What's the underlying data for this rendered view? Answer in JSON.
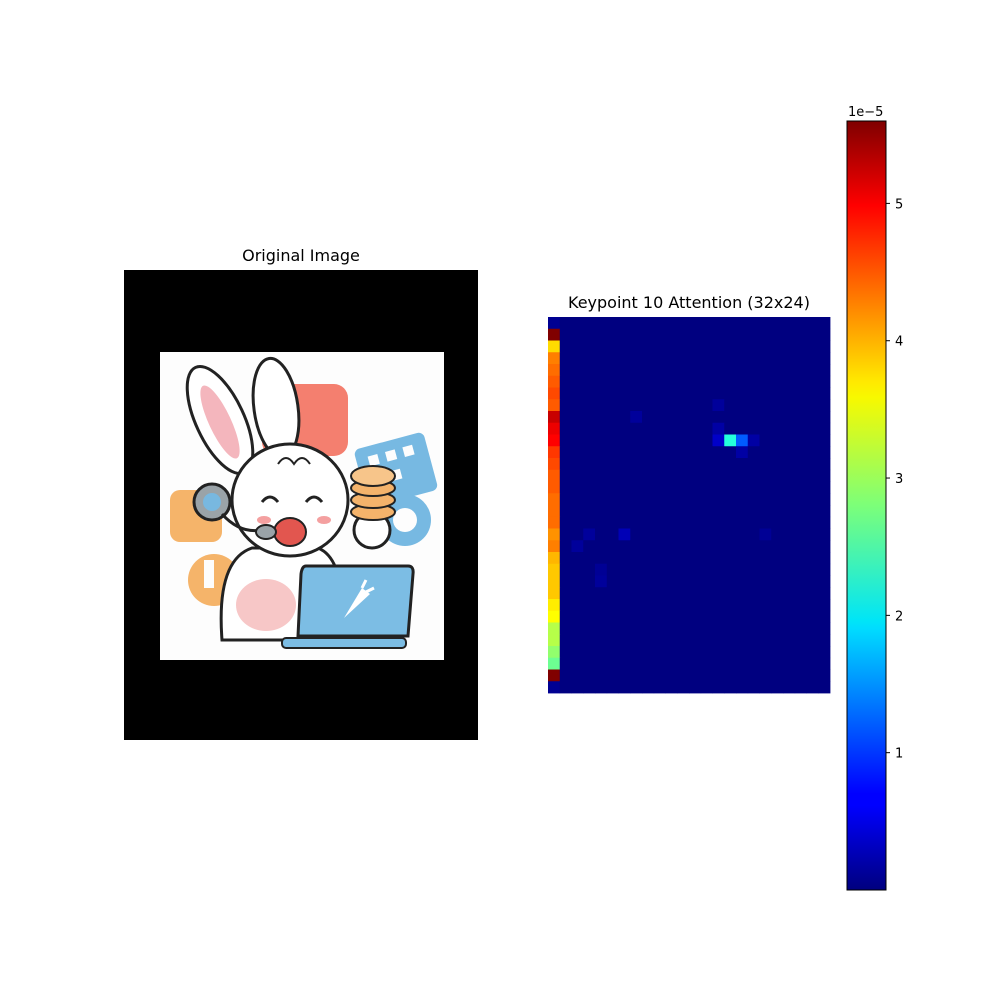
{
  "panels": {
    "left": {
      "title": "Original Image"
    },
    "right": {
      "title": "Keypoint 10 Attention (32x24)"
    }
  },
  "chart_data": {
    "type": "heatmap",
    "title": "Keypoint 10 Attention (32x24)",
    "rows": 32,
    "cols": 24,
    "colormap": "jet",
    "value_range": [
      0,
      5.6e-05
    ],
    "colorbar": {
      "offset_label": "1e−5",
      "ticks": [
        1,
        2,
        3,
        4,
        5
      ],
      "tick_labels": [
        "1",
        "2",
        "3",
        "4",
        "5"
      ]
    },
    "left_column_values": [
      0.1,
      5.6,
      3.7,
      4.2,
      4.3,
      4.4,
      4.5,
      4.4,
      5.2,
      5.0,
      4.9,
      4.6,
      4.5,
      4.4,
      4.4,
      4.3,
      4.3,
      4.3,
      4.1,
      4.2,
      3.9,
      3.8,
      3.8,
      3.8,
      3.6,
      3.5,
      3.1,
      3.1,
      2.9,
      2.7,
      5.6,
      0.1
    ],
    "hotspots": [
      {
        "row": 10,
        "col": 15,
        "value": 2.3
      },
      {
        "row": 10,
        "col": 16,
        "value": 1.2
      },
      {
        "row": 10,
        "col": 14,
        "value": 0.4
      },
      {
        "row": 10,
        "col": 17,
        "value": 0.2
      },
      {
        "row": 9,
        "col": 14,
        "value": 0.2
      },
      {
        "row": 11,
        "col": 16,
        "value": 0.2
      },
      {
        "row": 7,
        "col": 14,
        "value": 0.15
      },
      {
        "row": 8,
        "col": 7,
        "value": 0.15
      },
      {
        "row": 18,
        "col": 6,
        "value": 0.3
      },
      {
        "row": 18,
        "col": 3,
        "value": 0.15
      },
      {
        "row": 19,
        "col": 2,
        "value": 0.15
      },
      {
        "row": 21,
        "col": 4,
        "value": 0.12
      },
      {
        "row": 22,
        "col": 4,
        "value": 0.15
      },
      {
        "row": 18,
        "col": 18,
        "value": 0.12
      }
    ]
  },
  "image": {
    "description_icons": [
      "rabbit-mascot",
      "coin-stack",
      "laptop",
      "carrot-logo"
    ]
  }
}
